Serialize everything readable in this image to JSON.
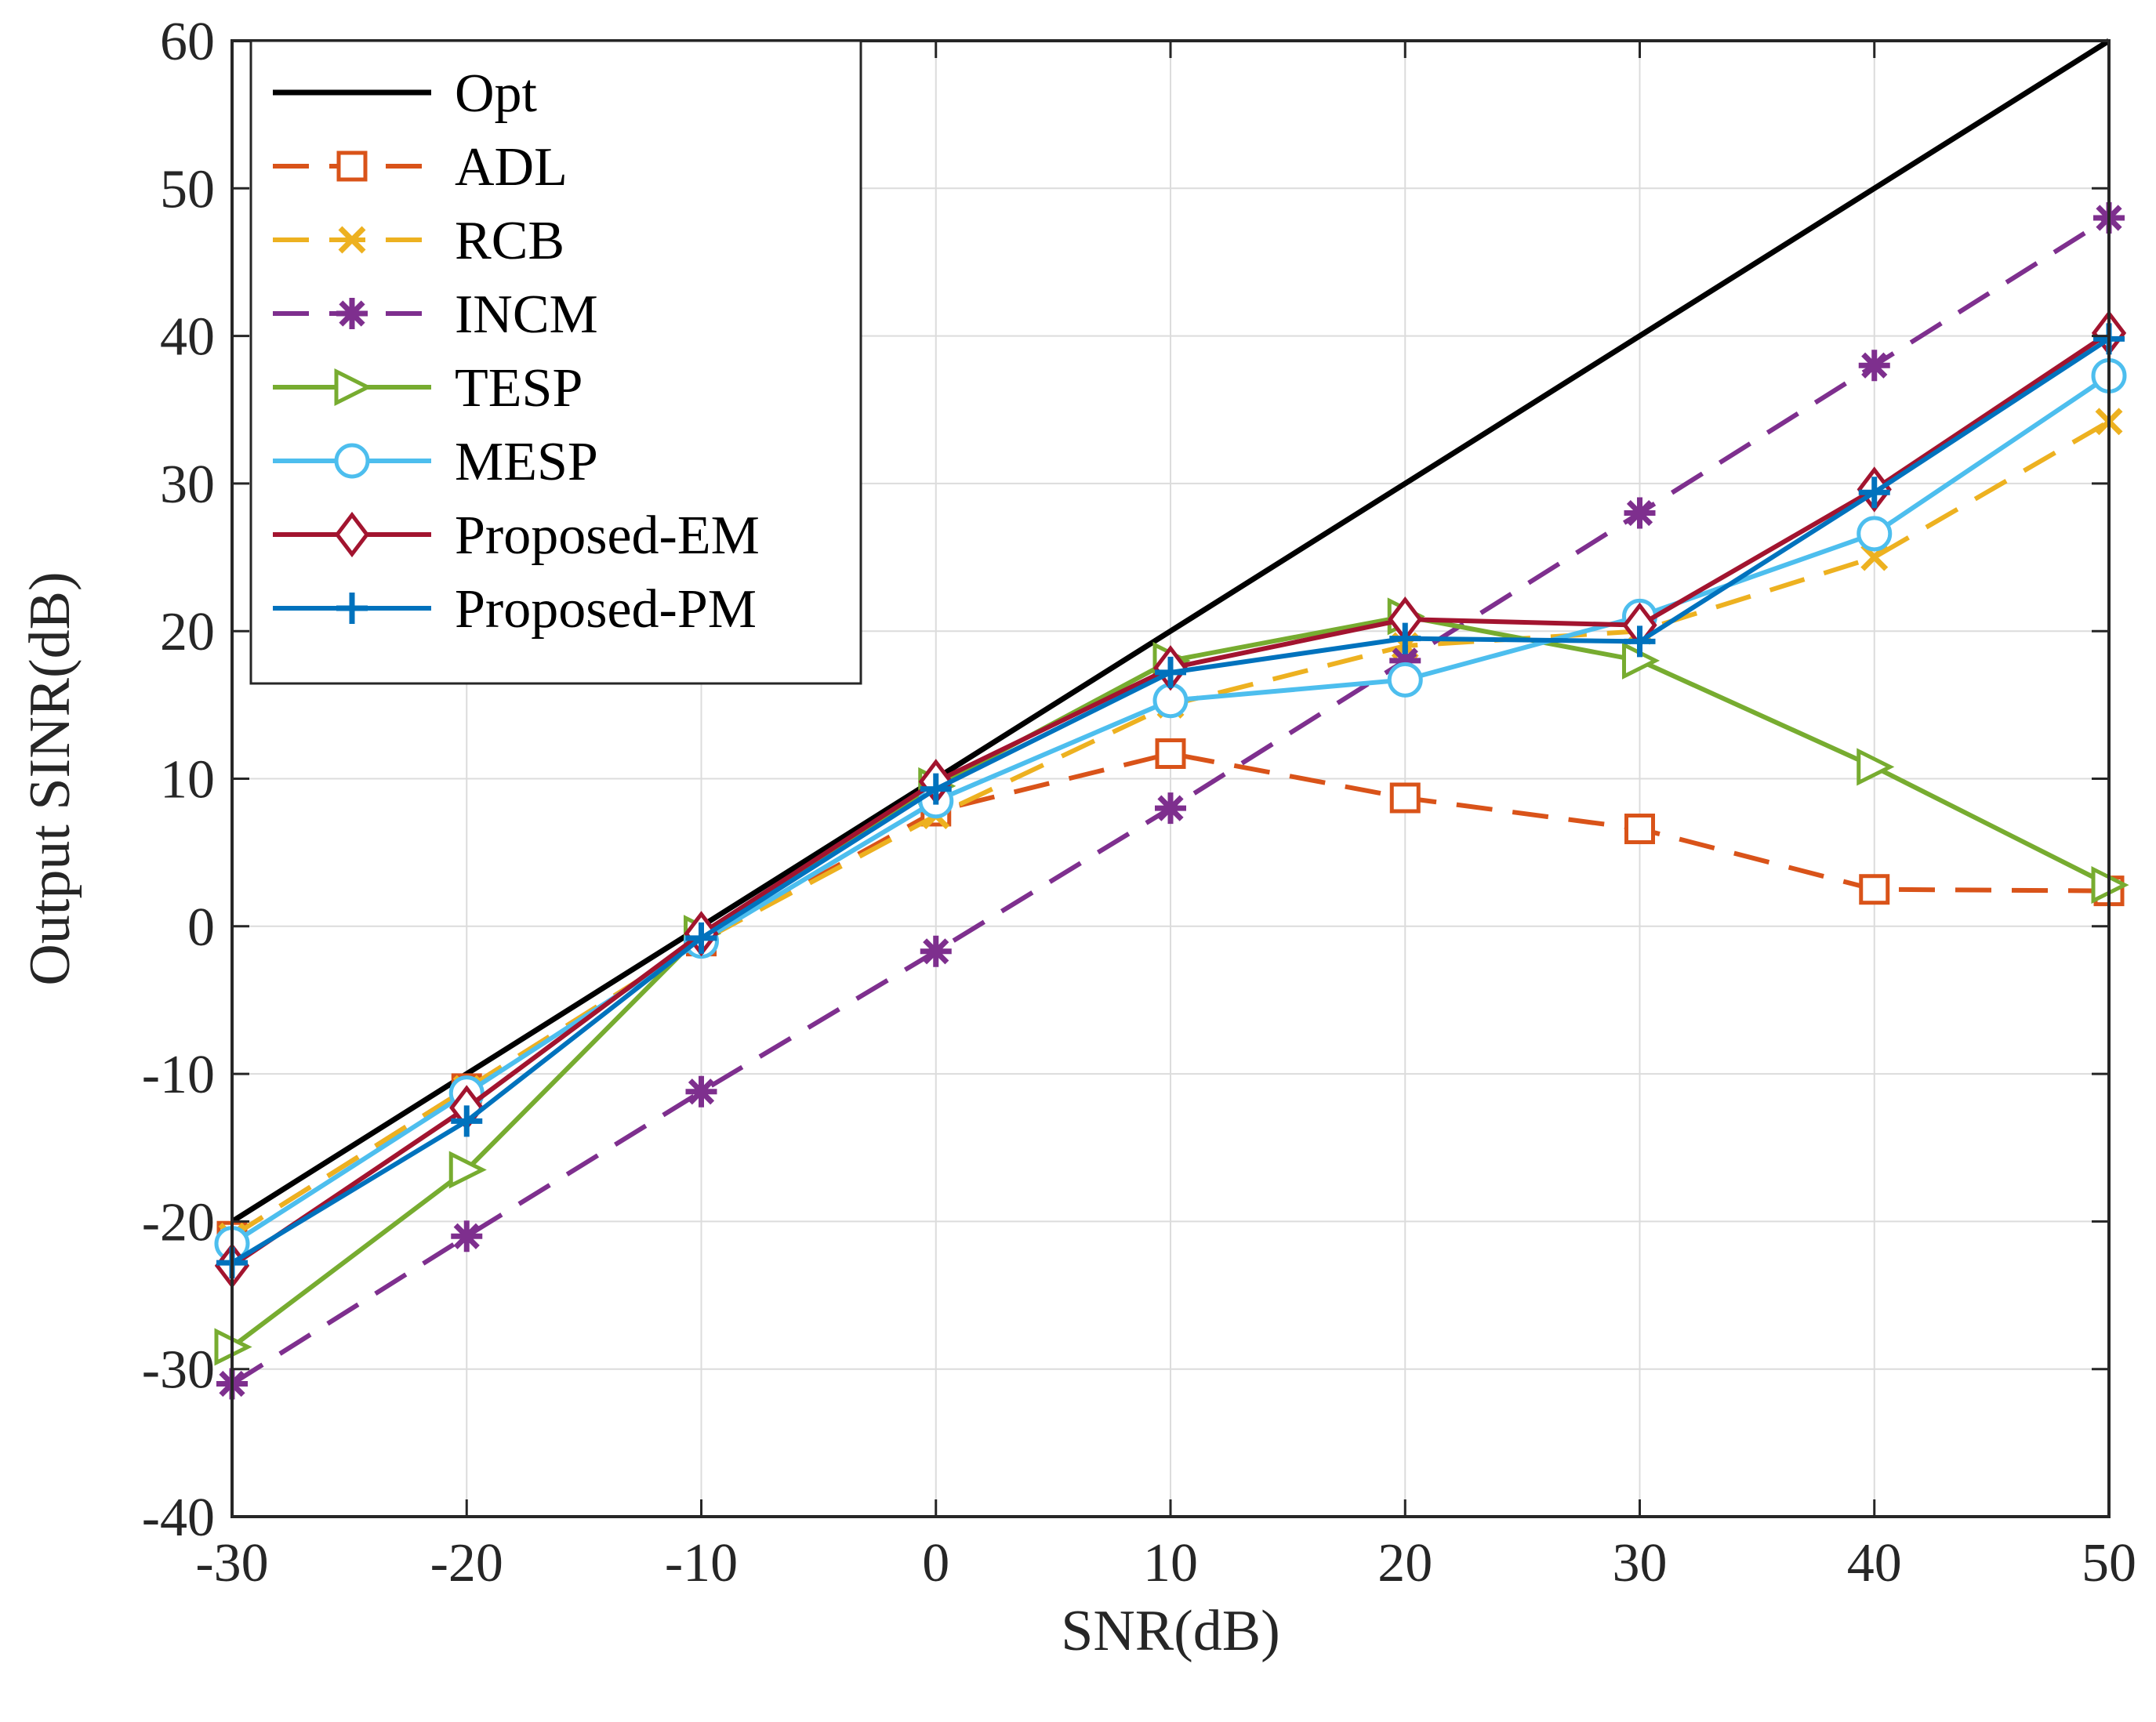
{
  "chart_data": {
    "type": "line",
    "title": "",
    "xlabel": "SNR(dB)",
    "ylabel": "Output SINR(dB)",
    "xlim": [
      -30,
      50
    ],
    "ylim": [
      -40,
      60
    ],
    "xticks": [
      -30,
      -20,
      -10,
      0,
      10,
      20,
      30,
      40,
      50
    ],
    "yticks": [
      -40,
      -30,
      -20,
      -10,
      0,
      10,
      20,
      30,
      40,
      50,
      60
    ],
    "grid": true,
    "legend_position": "top-left",
    "x": [
      -30,
      -20,
      -10,
      0,
      10,
      20,
      30,
      40,
      50
    ],
    "series": [
      {
        "name": "Opt",
        "color": "#000000",
        "dash": "solid",
        "marker": "none",
        "values": [
          -20,
          -10,
          0,
          10,
          20,
          30,
          40,
          50,
          60
        ]
      },
      {
        "name": "ADL",
        "color": "#D95319",
        "dash": "dashed",
        "marker": "square",
        "values": [
          -21,
          -11,
          -1,
          7.8,
          11.7,
          8.7,
          6.6,
          2.5,
          2.4
        ]
      },
      {
        "name": "RCB",
        "color": "#EDB120",
        "dash": "dashed",
        "marker": "x",
        "values": [
          -21,
          -11,
          -1,
          7.5,
          15,
          19,
          20,
          25,
          34.2
        ]
      },
      {
        "name": "INCM",
        "color": "#7E2F8E",
        "dash": "dashed",
        "marker": "asterisk",
        "values": [
          -31,
          -21,
          -11.2,
          -1.7,
          8,
          18,
          28,
          38,
          48
        ]
      },
      {
        "name": "TESP",
        "color": "#77AC30",
        "dash": "solid",
        "marker": "triangle-right",
        "values": [
          -28.5,
          -16.5,
          -0.5,
          9.5,
          18,
          21,
          18,
          10.8,
          2.8
        ]
      },
      {
        "name": "MESP",
        "color": "#4DBEEE",
        "dash": "solid",
        "marker": "circle",
        "values": [
          -21.5,
          -11.3,
          -1,
          8.5,
          15.3,
          16.7,
          21,
          26.6,
          37.3
        ]
      },
      {
        "name": "Proposed-EM",
        "color": "#A2142F",
        "dash": "solid",
        "marker": "diamond",
        "values": [
          -23,
          -12.3,
          -0.5,
          9.8,
          17.5,
          20.8,
          20.4,
          29.6,
          40.2
        ]
      },
      {
        "name": "Proposed-PM",
        "color": "#0072BD",
        "dash": "solid",
        "marker": "plus",
        "values": [
          -22.8,
          -13.2,
          -0.8,
          9.3,
          17.2,
          19.5,
          19.3,
          29.4,
          39.8
        ]
      }
    ]
  }
}
